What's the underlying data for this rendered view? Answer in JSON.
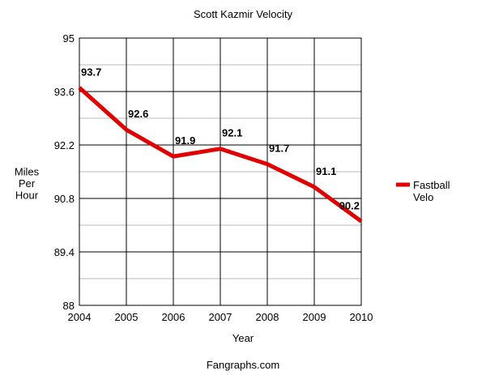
{
  "chart_data": {
    "type": "line",
    "title": "Scott Kazmir Velocity",
    "xlabel": "Year",
    "ylabel": "Miles Per Hour",
    "x": [
      "2004",
      "2005",
      "2006",
      "2007",
      "2008",
      "2009",
      "2010"
    ],
    "series": [
      {
        "name": "Fastball Velo",
        "values": [
          93.7,
          92.6,
          91.9,
          92.1,
          91.7,
          91.1,
          90.2
        ],
        "labels": [
          "93.7",
          "92.6",
          "91.9",
          "92.1",
          "91.7",
          "91.1",
          "90.2"
        ],
        "color": "#e00000"
      }
    ],
    "ylim": [
      88,
      95
    ],
    "y_ticks": [
      "88",
      "89.4",
      "90.8",
      "92.2",
      "93.6",
      "95"
    ],
    "grid": true,
    "legend_position": "right",
    "source": "Fangraphs.com"
  }
}
